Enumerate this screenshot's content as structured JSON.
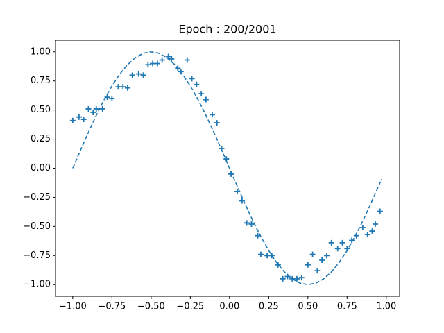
{
  "chart_data": {
    "type": "scatter",
    "title": "Epoch : 200/2001",
    "xlim": [
      -1.11,
      1.085
    ],
    "ylim": [
      -1.1,
      1.1
    ],
    "xticks": [
      {
        "value": -1,
        "label": "−1.00"
      },
      {
        "value": -0.75,
        "label": "−0.75"
      },
      {
        "value": -0.5,
        "label": "−0.50"
      },
      {
        "value": -0.25,
        "label": "−0.25"
      },
      {
        "value": 0,
        "label": "0.00"
      },
      {
        "value": 0.25,
        "label": "0.25"
      },
      {
        "value": 0.5,
        "label": "0.50"
      },
      {
        "value": 0.75,
        "label": "0.75"
      },
      {
        "value": 1,
        "label": "1.00"
      }
    ],
    "yticks": [
      {
        "value": -1,
        "label": "−1.00"
      },
      {
        "value": -0.75,
        "label": "−0.75"
      },
      {
        "value": -0.5,
        "label": "−0.50"
      },
      {
        "value": -0.25,
        "label": "−0.25"
      },
      {
        "value": 0,
        "label": "0.00"
      },
      {
        "value": 0.25,
        "label": "0.25"
      },
      {
        "value": 0.5,
        "label": "0.50"
      },
      {
        "value": 0.75,
        "label": "0.75"
      },
      {
        "value": 1,
        "label": "1.00"
      }
    ],
    "series": [
      {
        "type": "scatter",
        "color": "#1f77b4",
        "x": [
          -1.0,
          -0.96,
          -0.93,
          -0.9,
          -0.87,
          -0.85,
          -0.81,
          -0.78,
          -0.75,
          -0.71,
          -0.68,
          -0.65,
          -0.62,
          -0.58,
          -0.55,
          -0.52,
          -0.49,
          -0.46,
          -0.43,
          -0.39,
          -0.37,
          -0.33,
          -0.31,
          -0.27,
          -0.24,
          -0.21,
          -0.18,
          -0.15,
          -0.11,
          -0.08,
          -0.05,
          -0.02,
          0.01,
          0.05,
          0.08,
          0.11,
          0.14,
          0.18,
          0.2,
          0.24,
          0.27,
          0.31,
          0.34,
          0.37,
          0.4,
          0.43,
          0.46,
          0.5,
          0.53,
          0.56,
          0.59,
          0.62,
          0.65,
          0.69,
          0.72,
          0.75,
          0.78,
          0.81,
          0.85,
          0.88,
          0.91,
          0.93,
          0.96
        ],
        "values": [
          0.41,
          0.44,
          0.42,
          0.51,
          0.48,
          0.51,
          0.51,
          0.61,
          0.6,
          0.7,
          0.7,
          0.69,
          0.8,
          0.81,
          0.8,
          0.89,
          0.9,
          0.9,
          0.93,
          0.96,
          0.94,
          0.86,
          0.83,
          0.93,
          0.77,
          0.72,
          0.64,
          0.59,
          0.46,
          0.39,
          0.17,
          0.08,
          -0.05,
          -0.2,
          -0.28,
          -0.47,
          -0.48,
          -0.58,
          -0.74,
          -0.75,
          -0.75,
          -0.83,
          -0.95,
          -0.93,
          -0.95,
          -0.95,
          -0.94,
          -0.83,
          -0.74,
          -0.88,
          -0.79,
          -0.75,
          -0.64,
          -0.69,
          -0.64,
          -0.69,
          -0.62,
          -0.58,
          -0.51,
          -0.57,
          -0.54,
          -0.48,
          -0.37
        ]
      },
      {
        "type": "line",
        "color": "#1f77b4",
        "x": [
          -1.0,
          -0.95,
          -0.9,
          -0.85,
          -0.8,
          -0.75,
          -0.7,
          -0.65,
          -0.6,
          -0.55,
          -0.5,
          -0.45,
          -0.4,
          -0.35,
          -0.3,
          -0.25,
          -0.2,
          -0.15,
          -0.1,
          -0.05,
          0.0,
          0.05,
          0.1,
          0.15,
          0.2,
          0.25,
          0.3,
          0.35,
          0.4,
          0.45,
          0.5,
          0.55,
          0.6,
          0.65,
          0.7,
          0.75,
          0.8,
          0.85,
          0.9,
          0.95,
          0.97
        ],
        "values": [
          0.0,
          0.156,
          0.309,
          0.454,
          0.588,
          0.707,
          0.809,
          0.891,
          0.951,
          0.988,
          1.0,
          0.988,
          0.951,
          0.891,
          0.809,
          0.707,
          0.588,
          0.454,
          0.309,
          0.156,
          0.0,
          -0.156,
          -0.309,
          -0.454,
          -0.588,
          -0.707,
          -0.809,
          -0.891,
          -0.951,
          -0.988,
          -1.0,
          -0.988,
          -0.951,
          -0.891,
          -0.809,
          -0.707,
          -0.588,
          -0.454,
          -0.309,
          -0.156,
          -0.094
        ]
      }
    ]
  }
}
